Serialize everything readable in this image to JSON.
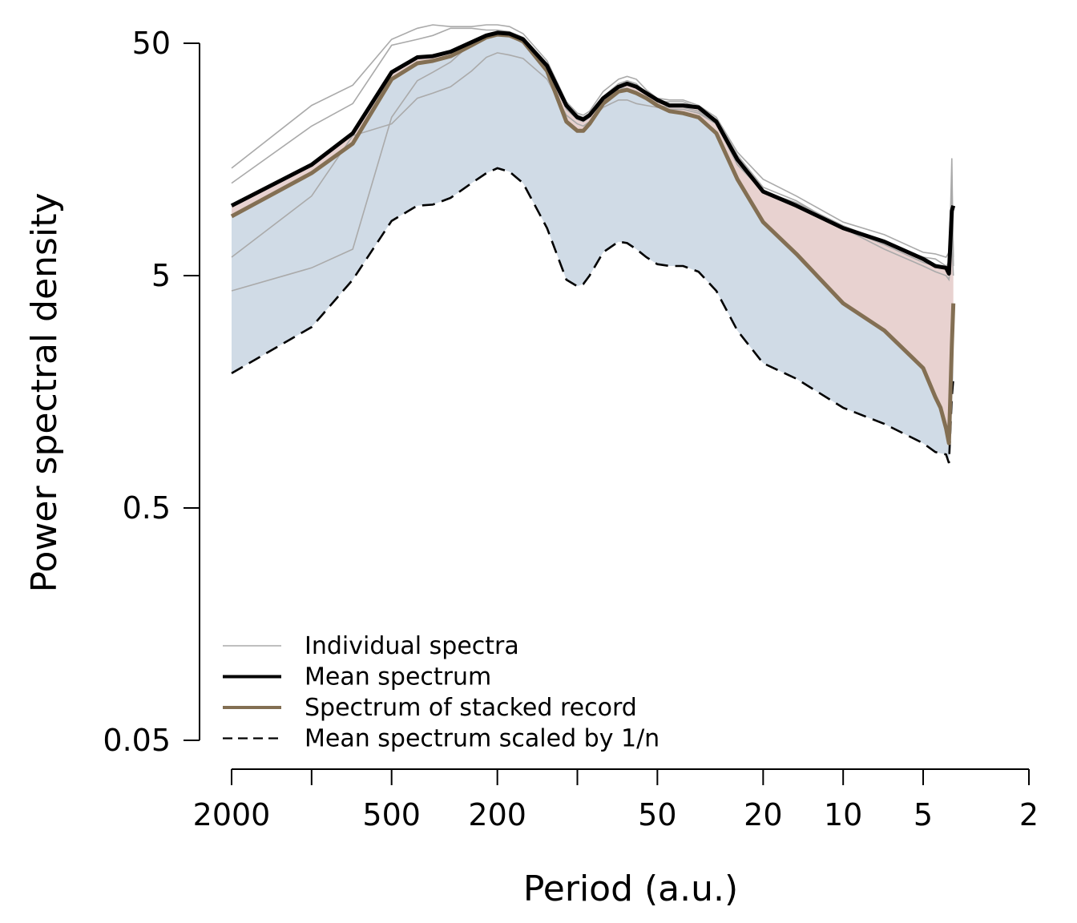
{
  "chart_data": {
    "type": "line",
    "title": "",
    "xlabel": "Period (a.u.)",
    "ylabel": "Power spectral density",
    "x_scale": "log",
    "y_scale": "log",
    "x_reversed": true,
    "xlim": [
      2000,
      2
    ],
    "ylim": [
      0.05,
      50
    ],
    "x_ticks": [
      2000,
      1000,
      500,
      200,
      100,
      50,
      20,
      10,
      5,
      2
    ],
    "x_tick_labels": [
      "2000",
      "",
      "500",
      "200",
      "",
      "50",
      "20",
      "10",
      "5",
      "2"
    ],
    "y_ticks": [
      0.05,
      0.5,
      5,
      50
    ],
    "y_tick_labels": [
      "0.05",
      "0.5",
      "5",
      "50"
    ],
    "grid": false,
    "legend_position": "bottom-left",
    "colors": {
      "individual": "#aaaaaa",
      "mean": "#000000",
      "stacked": "#836f53",
      "scaled": "#000000",
      "fill_upper": "#e8d2d0",
      "fill_lower": "#d0dbe6"
    },
    "series": [
      {
        "name": "Mean spectrum",
        "style": "solid-thick",
        "x": [
          2000,
          1000,
          700,
          500,
          400,
          350,
          300,
          250,
          220,
          200,
          180,
          160,
          130,
          110,
          100,
          95,
          90,
          80,
          70,
          65,
          60,
          55,
          50,
          45,
          40,
          35,
          30,
          25,
          20,
          15,
          10,
          7,
          5,
          4.5,
          4.1,
          4.0,
          3.9,
          3.85
        ],
        "values": [
          10.0,
          15.0,
          20.5,
          37.5,
          43.5,
          44.0,
          46.0,
          50.5,
          54.0,
          55.5,
          55.0,
          52.0,
          40.0,
          27.0,
          24.0,
          23.5,
          24.5,
          29.0,
          32.5,
          33.5,
          32.5,
          30.5,
          28.5,
          27.0,
          27.0,
          26.5,
          23.0,
          15.8,
          11.5,
          10.0,
          8.0,
          7.0,
          5.9,
          5.5,
          5.4,
          5.1,
          9.5,
          10.0
        ]
      },
      {
        "name": "Spectrum of stacked record",
        "style": "solid-thick",
        "x": [
          2000,
          1000,
          700,
          500,
          400,
          350,
          300,
          250,
          220,
          200,
          180,
          160,
          130,
          110,
          100,
          95,
          90,
          80,
          70,
          65,
          60,
          55,
          50,
          45,
          40,
          35,
          30,
          25,
          20,
          15,
          10,
          7,
          5,
          4.5,
          4.3,
          4.1,
          4.0,
          3.9,
          3.85
        ],
        "values": [
          9.0,
          13.8,
          18.5,
          35.0,
          41.0,
          42.0,
          44.0,
          49.0,
          53.0,
          54.5,
          54.0,
          51.0,
          38.0,
          23.0,
          21.0,
          21.0,
          22.5,
          27.5,
          31.0,
          31.5,
          30.5,
          29.0,
          27.0,
          25.5,
          25.0,
          24.0,
          20.5,
          13.0,
          8.5,
          6.2,
          3.8,
          2.9,
          2.0,
          1.5,
          1.35,
          1.1,
          0.95,
          2.5,
          3.8
        ]
      },
      {
        "name": "Mean spectrum scaled by 1/n",
        "style": "dashed",
        "x": [
          2000,
          1000,
          700,
          500,
          400,
          350,
          300,
          250,
          220,
          200,
          180,
          160,
          130,
          110,
          100,
          95,
          90,
          80,
          70,
          65,
          60,
          55,
          50,
          45,
          40,
          35,
          30,
          25,
          20,
          15,
          10,
          7,
          5,
          4.5,
          4.1,
          4.0,
          3.9,
          3.85
        ],
        "values": [
          1.9,
          3.0,
          4.8,
          8.6,
          10.0,
          10.1,
          10.8,
          12.5,
          13.8,
          14.5,
          14.0,
          12.5,
          8.0,
          4.8,
          4.5,
          4.6,
          5.0,
          6.3,
          7.0,
          6.9,
          6.5,
          6.0,
          5.6,
          5.5,
          5.5,
          5.2,
          4.3,
          2.9,
          2.1,
          1.8,
          1.35,
          1.15,
          0.95,
          0.87,
          0.85,
          0.78,
          1.5,
          1.8
        ]
      }
    ],
    "individual_spectra": [
      {
        "x": [
          2000,
          1000,
          700,
          500,
          400,
          350,
          300,
          250,
          220,
          200,
          180,
          160,
          130,
          110,
          100,
          95,
          90,
          80,
          70,
          65,
          60,
          55,
          50,
          45,
          40,
          35,
          30,
          25,
          20,
          15,
          10,
          7,
          5,
          4.5,
          4.1,
          4.0,
          3.95,
          3.9,
          3.85
        ],
        "values": [
          14.5,
          27.0,
          33.0,
          52.0,
          58.0,
          60.0,
          59.0,
          59.0,
          60.0,
          60.0,
          59.0,
          55.0,
          42.0,
          28.0,
          25.0,
          24.5,
          25.5,
          31.0,
          35.0,
          36.0,
          35.0,
          31.5,
          29.0,
          28.5,
          28.5,
          27.0,
          24.0,
          17.0,
          13.0,
          11.0,
          8.5,
          7.5,
          6.3,
          6.2,
          6.0,
          6.3,
          7.0,
          13.0,
          6.0
        ]
      },
      {
        "x": [
          2000,
          1000,
          700,
          500,
          400,
          350,
          300,
          250,
          220,
          200,
          180,
          160,
          130,
          110,
          100,
          95,
          90,
          80,
          70,
          65,
          60,
          55,
          50,
          45,
          40,
          35,
          30,
          25,
          20,
          15,
          10,
          7,
          5,
          4.5,
          4.1,
          4.0,
          3.95,
          3.9,
          3.85
        ],
        "values": [
          12.5,
          22.0,
          27.5,
          49.0,
          52.0,
          54.0,
          58.0,
          58.0,
          57.0,
          57.0,
          56.0,
          53.0,
          40.0,
          26.0,
          23.5,
          23.0,
          24.0,
          29.5,
          33.5,
          34.5,
          33.5,
          30.5,
          28.0,
          28.0,
          28.0,
          26.5,
          23.5,
          16.5,
          12.0,
          10.5,
          8.0,
          6.8,
          5.7,
          5.5,
          5.4,
          5.8,
          9.0,
          16.0,
          5.5
        ]
      },
      {
        "x": [
          2000,
          1000,
          700,
          500,
          400,
          350,
          300,
          250,
          220,
          200,
          180,
          160,
          130,
          110,
          100,
          95,
          90,
          80,
          70,
          65,
          60,
          55,
          50,
          45,
          40,
          35,
          30,
          25,
          20,
          15,
          10,
          7,
          5,
          4.5,
          4.1,
          4.0,
          3.95,
          3.9,
          3.85
        ],
        "values": [
          6.0,
          11.0,
          20.0,
          22.5,
          29.0,
          30.5,
          32.5,
          38.0,
          43.5,
          45.5,
          44.5,
          43.0,
          35.0,
          24.5,
          22.5,
          22.0,
          23.0,
          26.5,
          28.5,
          28.5,
          27.5,
          27.0,
          26.5,
          26.0,
          26.0,
          25.0,
          22.5,
          15.5,
          11.5,
          10.0,
          8.0,
          6.5,
          5.5,
          5.2,
          5.0,
          4.8,
          5.5,
          7.0,
          5.0
        ]
      },
      {
        "x": [
          2000,
          1000,
          700,
          500,
          400,
          350,
          300,
          250,
          220,
          200,
          180,
          160,
          130,
          110,
          100,
          95,
          90,
          80,
          70,
          65,
          60,
          55,
          50,
          45,
          40,
          35,
          30,
          25,
          20,
          15,
          10,
          7,
          5,
          4.5,
          4.1,
          4.0,
          3.95,
          3.9,
          3.85
        ],
        "values": [
          4.3,
          5.4,
          6.5,
          24.0,
          34.5,
          37.5,
          41.5,
          50.0,
          54.0,
          56.0,
          54.0,
          50.0,
          39.0,
          27.0,
          24.5,
          24.0,
          25.0,
          29.5,
          32.0,
          32.0,
          31.0,
          29.0,
          27.0,
          26.5,
          26.5,
          25.5,
          22.5,
          15.0,
          11.5,
          10.3,
          8.2,
          7.0,
          6.0,
          5.9,
          5.5,
          5.6,
          6.5,
          8.0,
          5.5
        ]
      }
    ],
    "legend": [
      {
        "key": "individual",
        "label": "Individual spectra"
      },
      {
        "key": "mean",
        "label": "Mean spectrum"
      },
      {
        "key": "stacked",
        "label": "Spectrum of stacked record"
      },
      {
        "key": "scaled",
        "label": "Mean spectrum scaled by 1/n"
      }
    ]
  }
}
